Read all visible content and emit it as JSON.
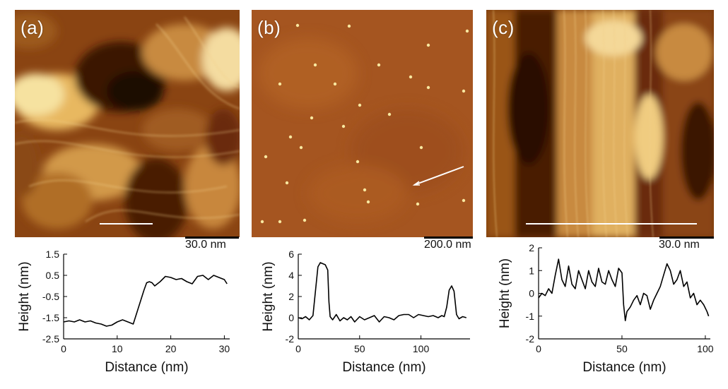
{
  "panels": [
    {
      "label": "(a)",
      "scale_bar": "30.0 nm"
    },
    {
      "label": "(b)",
      "scale_bar": "200.0 nm"
    },
    {
      "label": "(c)",
      "scale_bar": "30.0 nm"
    }
  ],
  "colors": {
    "afm_dark": "#3a1404",
    "afm_mid": "#a25420",
    "afm_light": "#f6e2a0",
    "line": "#000000"
  },
  "chart_data": [
    {
      "type": "line",
      "panel": "(a)",
      "xlabel": "Distance (nm)",
      "ylabel": "Height (nm)",
      "xlim": [
        0,
        31
      ],
      "ylim": [
        -2.5,
        1.5
      ],
      "xticks": [
        0,
        10,
        20,
        30
      ],
      "yticks": [
        -2.5,
        -1.5,
        -0.5,
        0.5,
        1.5
      ],
      "ytick_labels": [
        "-2.5",
        "-1.5",
        "-0.5",
        "0.5",
        "1.5"
      ],
      "x": [
        0,
        1,
        2,
        3,
        4,
        5,
        6,
        7,
        8,
        9,
        10,
        11,
        12,
        13,
        14,
        15,
        15.5,
        16,
        16.5,
        17,
        18,
        19,
        20,
        21,
        22,
        23,
        24,
        25,
        26,
        27,
        28,
        29,
        30,
        30.5
      ],
      "y": [
        -1.7,
        -1.65,
        -1.7,
        -1.6,
        -1.7,
        -1.65,
        -1.75,
        -1.8,
        -1.9,
        -1.85,
        -1.7,
        -1.6,
        -1.7,
        -1.8,
        -1.0,
        -0.2,
        0.15,
        0.2,
        0.15,
        0.0,
        0.2,
        0.45,
        0.4,
        0.3,
        0.35,
        0.2,
        0.1,
        0.45,
        0.5,
        0.3,
        0.5,
        0.4,
        0.3,
        0.1
      ]
    },
    {
      "type": "line",
      "panel": "(b)",
      "xlabel": "Distance (nm)",
      "ylabel": "Height (nm)",
      "xlim": [
        0,
        140
      ],
      "ylim": [
        -2,
        6
      ],
      "xticks": [
        0,
        50,
        100
      ],
      "yticks": [
        -2,
        0,
        2,
        4,
        6
      ],
      "ytick_labels": [
        "-2",
        "0",
        "2",
        "4",
        "6"
      ],
      "x": [
        0,
        3,
        6,
        9,
        12,
        14,
        16,
        18,
        20,
        22,
        24,
        25,
        26,
        28,
        31,
        34,
        37,
        40,
        43,
        46,
        50,
        54,
        58,
        62,
        66,
        70,
        74,
        78,
        82,
        86,
        90,
        94,
        98,
        102,
        106,
        110,
        114,
        117,
        119,
        121,
        123,
        125,
        127,
        129,
        131,
        134,
        137
      ],
      "y": [
        0,
        -0.1,
        0.1,
        -0.2,
        0.2,
        2.5,
        4.8,
        5.2,
        5.1,
        5.0,
        4.5,
        1.5,
        0.1,
        -0.2,
        0.3,
        -0.3,
        0.0,
        -0.2,
        0.1,
        -0.4,
        0.1,
        -0.2,
        0.0,
        0.2,
        -0.4,
        0.1,
        0.0,
        -0.2,
        0.2,
        0.3,
        0.3,
        0.0,
        0.3,
        0.2,
        0.1,
        0.2,
        0.0,
        0.2,
        0.1,
        1.0,
        2.6,
        3.0,
        2.5,
        0.3,
        -0.1,
        0.1,
        0.0
      ]
    },
    {
      "type": "line",
      "panel": "(c)",
      "xlabel": "Distance (nm)",
      "ylabel": "Height (nm)",
      "xlim": [
        0,
        103
      ],
      "ylim": [
        -2,
        2
      ],
      "xticks": [
        0,
        50,
        100
      ],
      "yticks": [
        -2,
        -1,
        0,
        1,
        2
      ],
      "ytick_labels": [
        "-2",
        "-1",
        "0",
        "1",
        "2"
      ],
      "x": [
        0,
        2,
        4,
        6,
        8,
        10,
        12,
        14,
        16,
        18,
        20,
        22,
        24,
        26,
        28,
        30,
        32,
        34,
        36,
        38,
        40,
        42,
        44,
        46,
        48,
        50,
        51,
        52,
        53,
        55,
        57,
        59,
        61,
        63,
        65,
        67,
        69,
        71,
        73,
        75,
        77,
        79,
        81,
        83,
        85,
        87,
        89,
        91,
        93,
        95,
        97,
        99,
        101,
        102
      ],
      "y": [
        -0.2,
        0.0,
        -0.1,
        0.2,
        0.0,
        0.8,
        1.5,
        0.6,
        0.3,
        1.2,
        0.4,
        0.2,
        1.0,
        0.6,
        0.2,
        1.0,
        0.5,
        0.3,
        1.1,
        0.5,
        0.4,
        1.0,
        0.6,
        0.3,
        1.1,
        0.9,
        -0.5,
        -1.2,
        -0.8,
        -0.6,
        -0.3,
        -0.1,
        -0.5,
        0.0,
        -0.1,
        -0.7,
        -0.3,
        0.0,
        0.3,
        0.8,
        1.3,
        1.0,
        0.4,
        0.6,
        1.0,
        0.3,
        0.5,
        -0.2,
        0.0,
        -0.5,
        -0.3,
        -0.5,
        -0.8,
        -1.0
      ]
    }
  ]
}
